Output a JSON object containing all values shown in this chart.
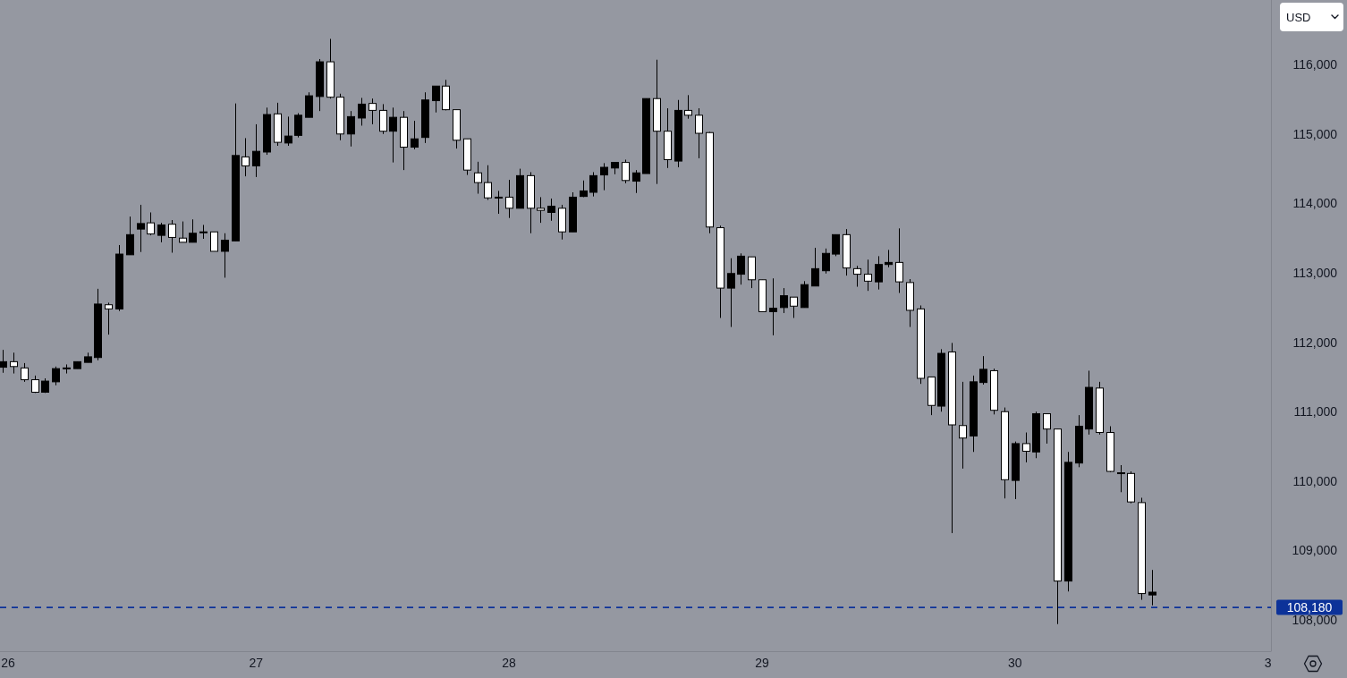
{
  "chart_data": {
    "type": "candlestick",
    "categories": [
      "26",
      null,
      null,
      null,
      null,
      null,
      null,
      null,
      null,
      null,
      null,
      null,
      null,
      null,
      null,
      null,
      null,
      null,
      null,
      null,
      null,
      null,
      null,
      null,
      "27",
      null,
      null,
      null,
      null,
      null,
      null,
      null,
      null,
      null,
      null,
      null,
      null,
      null,
      null,
      null,
      null,
      null,
      null,
      null,
      null,
      null,
      null,
      null,
      "28",
      null,
      null,
      null,
      null,
      null,
      null,
      null,
      null,
      null,
      null,
      null,
      null,
      null,
      null,
      null,
      null,
      null,
      null,
      null,
      null,
      null,
      null,
      null,
      "29",
      null,
      null,
      null,
      null,
      null,
      null,
      null,
      null,
      null,
      null,
      null,
      null,
      null,
      null,
      null,
      null,
      null,
      null,
      null,
      null,
      null,
      null,
      null,
      "30",
      null,
      null,
      null,
      null,
      null,
      null,
      null,
      null,
      null,
      null,
      null,
      null,
      null,
      null,
      null,
      null,
      null,
      null,
      null,
      null,
      null,
      null,
      null,
      "3"
    ],
    "ohlc": [
      [
        111640,
        111890,
        111560,
        111720
      ],
      [
        111720,
        111850,
        111550,
        111650
      ],
      [
        111630,
        111700,
        111430,
        111460
      ],
      [
        111460,
        111520,
        111270,
        111280
      ],
      [
        111280,
        111480,
        111270,
        111440
      ],
      [
        111430,
        111650,
        111380,
        111620
      ],
      [
        111620,
        111680,
        111550,
        111630
      ],
      [
        111620,
        111720,
        111620,
        111720
      ],
      [
        111710,
        111850,
        111710,
        111790
      ],
      [
        111780,
        112770,
        111740,
        112550
      ],
      [
        112540,
        112570,
        112110,
        112480
      ],
      [
        112480,
        113400,
        112450,
        113270
      ],
      [
        113260,
        113810,
        113260,
        113550
      ],
      [
        113630,
        113980,
        113300,
        113710
      ],
      [
        113720,
        113870,
        113540,
        113560
      ],
      [
        113540,
        113720,
        113440,
        113690
      ],
      [
        113700,
        113760,
        113290,
        113510
      ],
      [
        113500,
        113740,
        113440,
        113440
      ],
      [
        113440,
        113770,
        113440,
        113570
      ],
      [
        113580,
        113690,
        113490,
        113590
      ],
      [
        113590,
        113590,
        113310,
        113310
      ],
      [
        113310,
        113570,
        112930,
        113470
      ],
      [
        113460,
        115440,
        113460,
        114690
      ],
      [
        114670,
        114940,
        114390,
        114540
      ],
      [
        114540,
        115140,
        114380,
        114750
      ],
      [
        114740,
        115380,
        114700,
        115280
      ],
      [
        115290,
        115450,
        114830,
        114880
      ],
      [
        114870,
        115250,
        114830,
        114970
      ],
      [
        114980,
        115300,
        114950,
        115270
      ],
      [
        115240,
        115600,
        115240,
        115550
      ],
      [
        115540,
        116080,
        115330,
        116040
      ],
      [
        116040,
        116370,
        115510,
        115530
      ],
      [
        115530,
        115580,
        114910,
        115000
      ],
      [
        115000,
        115330,
        114820,
        115250
      ],
      [
        115230,
        115520,
        115120,
        115430
      ],
      [
        115440,
        115510,
        115140,
        115340
      ],
      [
        115340,
        115430,
        115000,
        115040
      ],
      [
        115040,
        115380,
        114590,
        115240
      ],
      [
        115240,
        115330,
        114480,
        114810
      ],
      [
        114810,
        115190,
        114780,
        114930
      ],
      [
        114950,
        115600,
        114870,
        115490
      ],
      [
        115480,
        115690,
        115310,
        115690
      ],
      [
        115690,
        115780,
        115340,
        115350
      ],
      [
        115350,
        115350,
        114790,
        114910
      ],
      [
        114930,
        114930,
        114410,
        114480
      ],
      [
        114440,
        114600,
        114140,
        114300
      ],
      [
        114300,
        114550,
        114050,
        114080
      ],
      [
        114080,
        114180,
        113850,
        114090
      ],
      [
        114090,
        114340,
        113790,
        113930
      ],
      [
        113930,
        114500,
        113930,
        114400
      ],
      [
        114400,
        114450,
        113570,
        113930
      ],
      [
        113930,
        114090,
        113720,
        113900
      ],
      [
        113870,
        114070,
        113750,
        113960
      ],
      [
        113930,
        113980,
        113480,
        113590
      ],
      [
        113590,
        114160,
        113590,
        114090
      ],
      [
        114100,
        114330,
        114090,
        114180
      ],
      [
        114160,
        114450,
        114100,
        114400
      ],
      [
        114410,
        114580,
        114190,
        114520
      ],
      [
        114510,
        114590,
        114420,
        114590
      ],
      [
        114590,
        114630,
        114290,
        114330
      ],
      [
        114320,
        114480,
        114150,
        114440
      ],
      [
        114430,
        115510,
        114430,
        115510
      ],
      [
        115510,
        116070,
        114280,
        115040
      ],
      [
        115040,
        115370,
        114510,
        114630
      ],
      [
        114610,
        115490,
        114520,
        115340
      ],
      [
        115340,
        115560,
        115220,
        115270
      ],
      [
        115270,
        115370,
        114650,
        115010
      ],
      [
        115020,
        115030,
        113570,
        113660
      ],
      [
        113650,
        113680,
        112350,
        112780
      ],
      [
        112780,
        113210,
        112220,
        112990
      ],
      [
        112980,
        113280,
        112830,
        113240
      ],
      [
        113230,
        113230,
        112780,
        112900
      ],
      [
        112900,
        112900,
        112440,
        112440
      ],
      [
        112440,
        112920,
        112100,
        112490
      ],
      [
        112500,
        112780,
        112420,
        112670
      ],
      [
        112650,
        112650,
        112350,
        112520
      ],
      [
        112500,
        112880,
        112500,
        112830
      ],
      [
        112810,
        113360,
        112810,
        113060
      ],
      [
        113030,
        113350,
        112990,
        113280
      ],
      [
        113270,
        113550,
        113240,
        113550
      ],
      [
        113550,
        113630,
        112960,
        113070
      ],
      [
        113060,
        113100,
        112800,
        112980
      ],
      [
        112980,
        113190,
        112740,
        112880
      ],
      [
        112870,
        113240,
        112760,
        113120
      ],
      [
        113120,
        113330,
        113080,
        113150
      ],
      [
        113150,
        113640,
        112710,
        112870
      ],
      [
        112860,
        112910,
        112220,
        112460
      ],
      [
        112480,
        112530,
        111400,
        111480
      ],
      [
        111500,
        111500,
        110950,
        111090
      ],
      [
        111080,
        111900,
        111000,
        111840
      ],
      [
        111860,
        111990,
        109250,
        110810
      ],
      [
        110800,
        111430,
        110180,
        110620
      ],
      [
        110650,
        111520,
        110420,
        111430
      ],
      [
        111420,
        111800,
        111390,
        111610
      ],
      [
        111590,
        111620,
        110960,
        111020
      ],
      [
        111000,
        111060,
        109750,
        110020
      ],
      [
        110010,
        110570,
        109740,
        110540
      ],
      [
        110540,
        110700,
        110270,
        110430
      ],
      [
        110420,
        111000,
        110330,
        110970
      ],
      [
        110970,
        110970,
        110540,
        110750
      ],
      [
        110750,
        110750,
        107940,
        108560
      ],
      [
        108560,
        110420,
        108410,
        110270
      ],
      [
        110260,
        110950,
        110200,
        110790
      ],
      [
        110750,
        111590,
        110670,
        111350
      ],
      [
        111340,
        111430,
        110670,
        110700
      ],
      [
        110700,
        110790,
        110130,
        110140
      ],
      [
        110120,
        110230,
        109840,
        110110
      ],
      [
        110110,
        110140,
        109680,
        109700
      ],
      [
        109690,
        109760,
        108290,
        108380
      ],
      [
        108360,
        108720,
        108210,
        108400
      ],
      null,
      null,
      null,
      null,
      null,
      null,
      null,
      null,
      null,
      null,
      null
    ],
    "colors": [
      "#000000",
      "#ffffff",
      "#ffffff",
      "#ffffff",
      "#000000",
      "#000000",
      "#000000",
      "#000000",
      "#000000",
      "#000000",
      "#ffffff",
      "#000000",
      "#000000",
      "#000000",
      "#ffffff",
      "#000000",
      "#ffffff",
      "#ffffff",
      "#000000",
      "#000000",
      "#ffffff",
      "#000000",
      "#000000",
      "#ffffff",
      "#000000",
      "#000000",
      "#ffffff",
      "#000000",
      "#000000",
      "#000000",
      "#000000",
      "#ffffff",
      "#ffffff",
      "#000000",
      "#000000",
      "#ffffff",
      "#ffffff",
      "#000000",
      "#ffffff",
      "#000000",
      "#000000",
      "#000000",
      "#ffffff",
      "#ffffff",
      "#ffffff",
      "#ffffff",
      "#ffffff",
      "#000000",
      "#ffffff",
      "#000000",
      "#ffffff",
      "#ffffff",
      "#000000",
      "#ffffff",
      "#000000",
      "#000000",
      "#000000",
      "#000000",
      "#000000",
      "#ffffff",
      "#000000",
      "#000000",
      "#ffffff",
      "#ffffff",
      "#000000",
      "#ffffff",
      "#ffffff",
      "#ffffff",
      "#ffffff",
      "#000000",
      "#000000",
      "#ffffff",
      "#ffffff",
      "#000000",
      "#000000",
      "#ffffff",
      "#000000",
      "#000000",
      "#000000",
      "#000000",
      "#ffffff",
      "#ffffff",
      "#ffffff",
      "#000000",
      "#000000",
      "#ffffff",
      "#ffffff",
      "#ffffff",
      "#ffffff",
      "#000000",
      "#ffffff",
      "#ffffff",
      "#000000",
      "#000000",
      "#ffffff",
      "#ffffff",
      "#000000",
      "#ffffff",
      "#000000",
      "#ffffff",
      "#ffffff",
      "#000000",
      "#000000",
      "#000000",
      "#ffffff",
      "#ffffff",
      "#ffffff",
      "#ffffff",
      "#ffffff",
      "#000000",
      null,
      null,
      null,
      null,
      null,
      null,
      null,
      null,
      null,
      null,
      null
    ],
    "ylim": [
      107550,
      116930
    ],
    "yticks": [
      {
        "value": 108000,
        "label": "108,000"
      },
      {
        "value": 109000,
        "label": "109,000"
      },
      {
        "value": 110000,
        "label": "110,000"
      },
      {
        "value": 111000,
        "label": "111,000"
      },
      {
        "value": 112000,
        "label": "112,000"
      },
      {
        "value": 113000,
        "label": "113,000"
      },
      {
        "value": 114000,
        "label": "114,000"
      },
      {
        "value": 115000,
        "label": "115,000"
      },
      {
        "value": 116000,
        "label": "116,000"
      }
    ],
    "ref_lines": [
      {
        "axis": "y",
        "value": 108180,
        "label": "108,180",
        "color": "#0c3299",
        "line_style": "dashed"
      }
    ],
    "annotations": [
      "USD"
    ]
  }
}
